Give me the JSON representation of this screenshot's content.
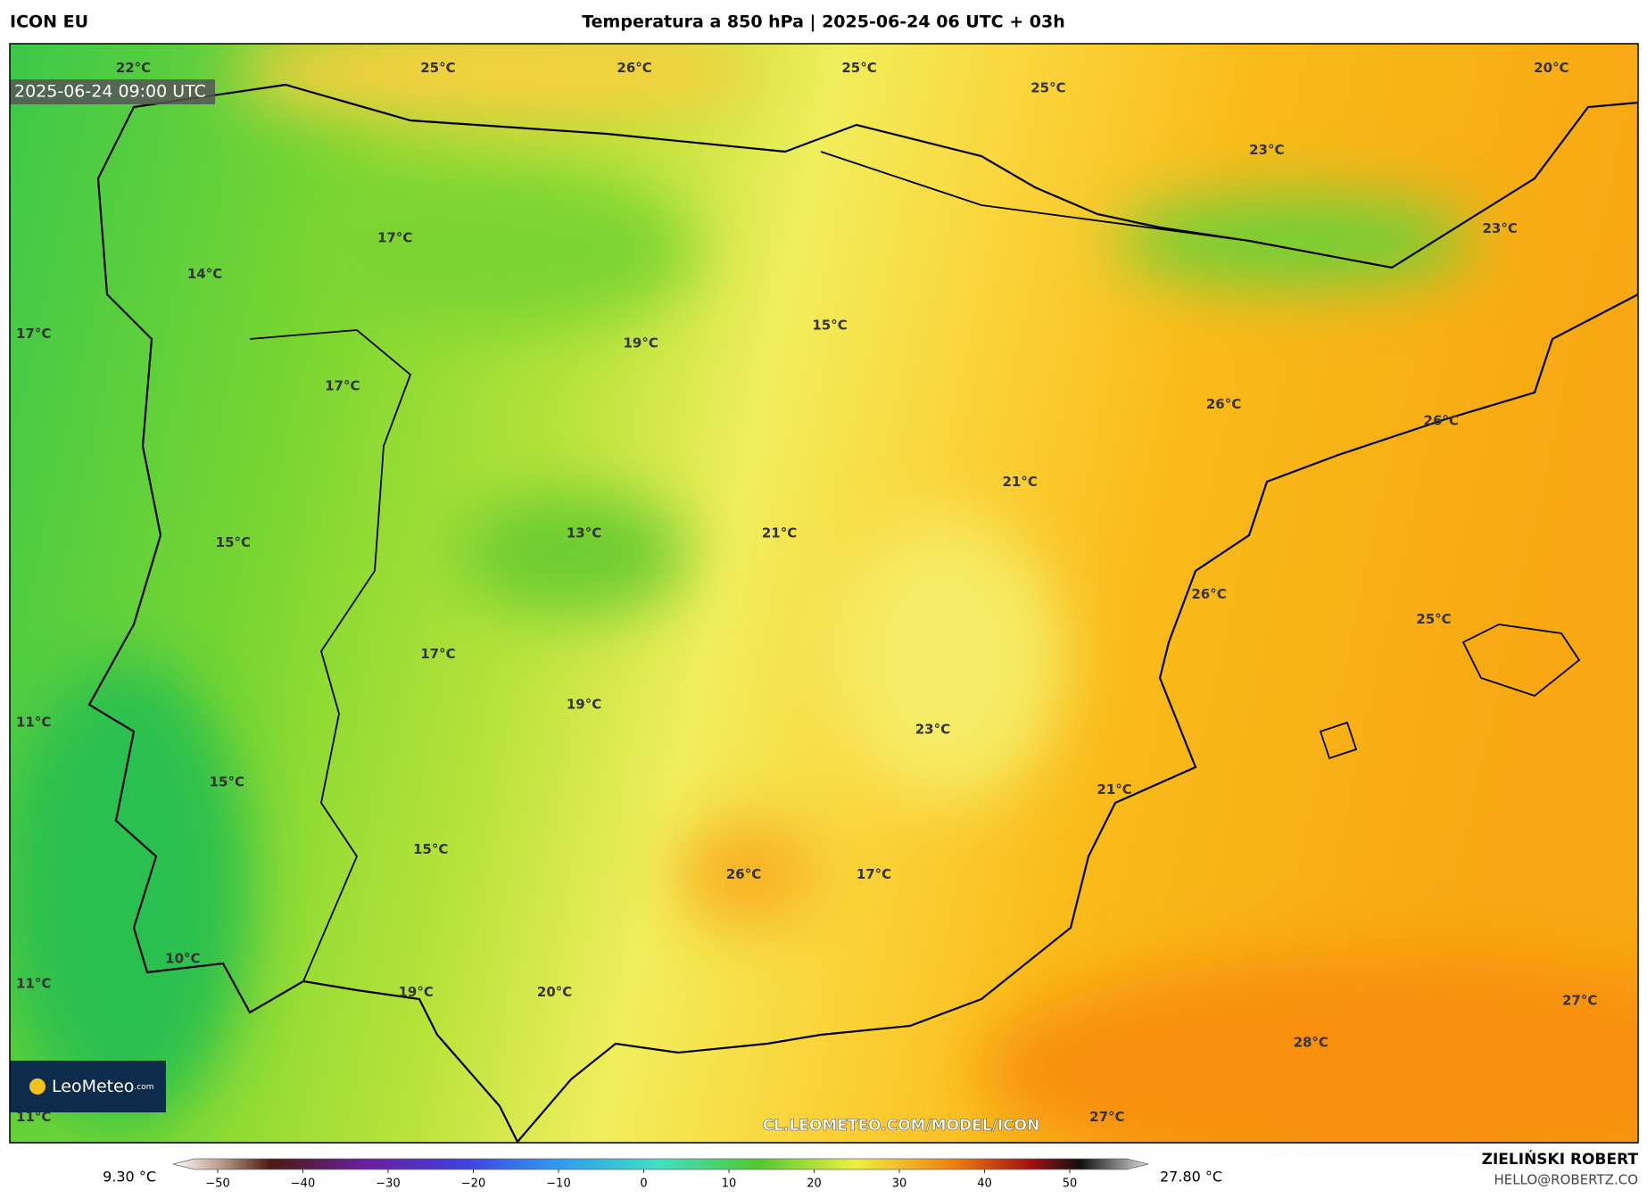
{
  "header": {
    "model": "ICON EU",
    "title": "Temperatura a 850 hPa | 2025-06-24 06 UTC + 03h",
    "timestamp": "2025-06-24 09:00 UTC",
    "logo": "LeoMeteo",
    "logo_suffix": ".com",
    "watermark": "CL.LEOMETEO.COM/MODEL/ICON"
  },
  "labels": [
    "22°C",
    "25°C",
    "26°C",
    "25°C",
    "25°C",
    "20°C",
    "23°C",
    "17°C",
    "23°C",
    "14°C",
    "17°C",
    "19°C",
    "15°C",
    "17°C",
    "26°C",
    "26°C",
    "21°C",
    "21°C",
    "13°C",
    "15°C",
    "26°C",
    "25°C",
    "17°C",
    "19°C",
    "11°C",
    "23°C",
    "15°C",
    "21°C",
    "15°C",
    "26°C",
    "17°C",
    "10°C",
    "11°C",
    "19°C",
    "20°C",
    "27°C",
    "28°C",
    "11°C",
    "27°C"
  ],
  "colorbar": {
    "min_label": "9.30 °C",
    "max_label": "27.80 °C",
    "ticks": [
      {
        "value": -50,
        "label": "−50"
      },
      {
        "value": -40,
        "label": "−40"
      },
      {
        "value": -30,
        "label": "−30"
      },
      {
        "value": -20,
        "label": "−20"
      },
      {
        "value": -10,
        "label": "−10"
      },
      0,
      10,
      20,
      30,
      40,
      50
    ],
    "range": [
      -50,
      50
    ]
  },
  "footer": {
    "author": "ZIELIŃSKI ROBERT",
    "email": "HELLO@ROBERTZ.CO"
  }
}
